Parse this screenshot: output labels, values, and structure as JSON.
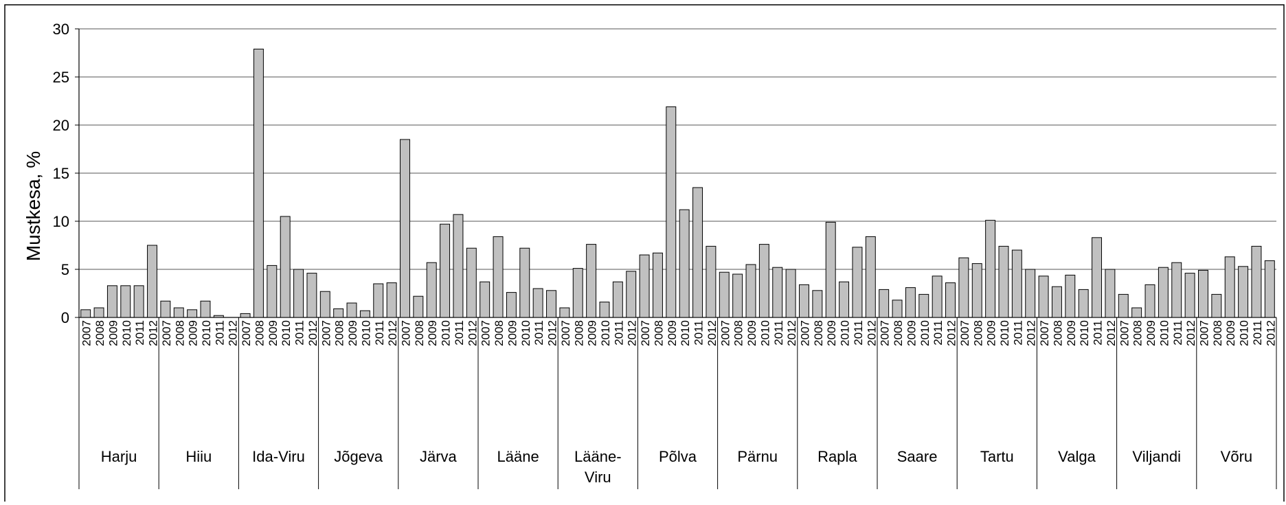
{
  "chart_data": {
    "type": "bar",
    "ylabel": "Mustkesa, %",
    "ylim": [
      0,
      30
    ],
    "yticks": [
      "0",
      "5",
      "10",
      "15",
      "20",
      "25",
      "30"
    ],
    "grid": true,
    "bar_color": "#c0c0c0",
    "years": [
      "2007",
      "2008",
      "2009",
      "2010",
      "2011",
      "2012"
    ],
    "groups": [
      {
        "label": "Harju",
        "values": [
          0.8,
          1.0,
          3.3,
          3.3,
          3.3,
          7.5
        ]
      },
      {
        "label": "Hiiu",
        "values": [
          1.7,
          1.0,
          0.8,
          1.7,
          0.2,
          0
        ]
      },
      {
        "label": "Ida-Viru",
        "values": [
          0.4,
          27.9,
          5.4,
          10.5,
          5.0,
          4.6
        ]
      },
      {
        "label": "Jõgeva",
        "values": [
          2.7,
          0.9,
          1.5,
          0.7,
          3.5,
          3.6
        ]
      },
      {
        "label": "Järva",
        "values": [
          18.5,
          2.2,
          5.7,
          9.7,
          10.7,
          7.2
        ]
      },
      {
        "label": "Lääne",
        "values": [
          3.7,
          8.4,
          2.6,
          7.2,
          3.0,
          2.8
        ]
      },
      {
        "label": "Lääne-Viru",
        "values": [
          1.0,
          5.1,
          7.6,
          1.6,
          3.7,
          4.8
        ]
      },
      {
        "label": "Põlva",
        "values": [
          6.5,
          6.7,
          21.9,
          11.2,
          13.5,
          7.4
        ]
      },
      {
        "label": "Pärnu",
        "values": [
          4.7,
          4.5,
          5.5,
          7.6,
          5.2,
          5.0
        ]
      },
      {
        "label": "Rapla",
        "values": [
          3.4,
          2.8,
          9.9,
          3.7,
          7.3,
          8.4
        ]
      },
      {
        "label": "Saare",
        "values": [
          2.9,
          1.8,
          3.1,
          2.4,
          4.3,
          3.6
        ]
      },
      {
        "label": "Tartu",
        "values": [
          6.2,
          5.6,
          10.1,
          7.4,
          7.0,
          5.0
        ]
      },
      {
        "label": "Valga",
        "values": [
          4.3,
          3.2,
          4.4,
          2.9,
          8.3,
          5.0
        ]
      },
      {
        "label": "Viljandi",
        "values": [
          2.4,
          1.0,
          3.4,
          5.2,
          5.7,
          4.6
        ]
      },
      {
        "label": "Võru",
        "values": [
          4.9,
          2.4,
          6.3,
          5.3,
          7.4,
          5.9
        ]
      }
    ]
  }
}
